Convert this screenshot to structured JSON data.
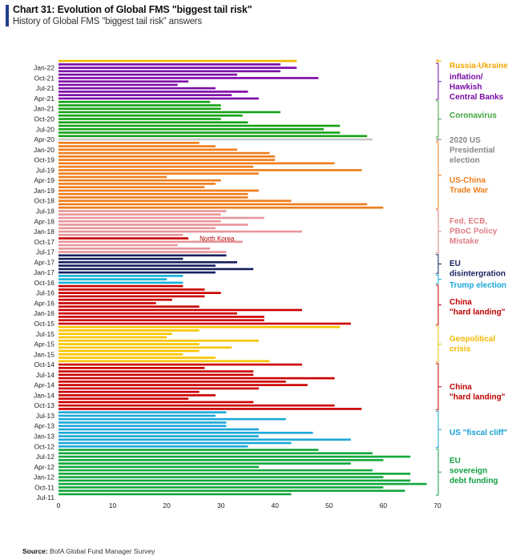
{
  "header": {
    "title": "Chart 31: Evolution of Global FMS \"biggest tail risk\"",
    "subtitle": "History of Global FMS \"biggest tail risk\" answers"
  },
  "source": {
    "label": "Source:",
    "text": "BofA Global Fund Manager Survey"
  },
  "chart_data": {
    "type": "bar",
    "orientation": "horizontal",
    "xlim": [
      0,
      70
    ],
    "xticks": [
      0,
      10,
      20,
      30,
      40,
      50,
      60,
      70
    ],
    "grid": false,
    "ytick_labels": [
      "Jan-22",
      "Oct-21",
      "Jul-21",
      "Apr-21",
      "Jan-21",
      "Oct-20",
      "Jul-20",
      "Apr-20",
      "Jan-20",
      "Oct-19",
      "Jul-19",
      "Apr-19",
      "Jan-19",
      "Oct-18",
      "Jul-18",
      "Apr-18",
      "Jan-18",
      "Oct-17",
      "Jul-17",
      "Apr-17",
      "Jan-17",
      "Oct-16",
      "Jul-16",
      "Apr-16",
      "Jan-16",
      "Oct-15",
      "Jul-15",
      "Apr-15",
      "Jan-15",
      "Oct-14",
      "Jul-14",
      "Apr-14",
      "Jan-14",
      "Oct-13",
      "Jul-13",
      "Apr-13",
      "Jan-13",
      "Oct-12",
      "Jul-12",
      "Apr-12",
      "Jan-12",
      "Oct-11",
      "Jul-11"
    ],
    "annotations": [
      {
        "text": "North Korea"
      }
    ],
    "groups": [
      {
        "name": "Russia-Ukraine",
        "color": "#f2b800",
        "values": [
          44
        ]
      },
      {
        "name": "inflation/ Hawkish Central Banks",
        "color": "#7e0aa8",
        "values": [
          41,
          44,
          41,
          33,
          48,
          24,
          22,
          29,
          35,
          32,
          37
        ]
      },
      {
        "name": "Coronavirus",
        "color": "#16a316",
        "values": [
          28,
          30,
          30,
          41,
          34,
          30,
          35,
          52,
          49,
          52,
          57
        ]
      },
      {
        "name": "2020 US Presidential election",
        "color": "#c8c8c8",
        "values": [
          58
        ]
      },
      {
        "name": "US-China Trade War",
        "color": "#f07d1a",
        "values": [
          26,
          29,
          33,
          39,
          40,
          40,
          51,
          36,
          56,
          37,
          20,
          30,
          29,
          27,
          37,
          35,
          35,
          43,
          57,
          60
        ]
      },
      {
        "name": "Fed, ECB, PBoC Policy Mistake",
        "color": "#e8969a",
        "values": [
          31,
          30,
          38,
          30,
          35,
          29,
          45,
          23
        ]
      },
      {
        "name": "North Korea",
        "color": "#cc0000",
        "values": [
          24
        ]
      },
      {
        "name": "Fed, ECB, PBoC Policy Mistake",
        "color": "#e8969a",
        "values": [
          34,
          22,
          28,
          31
        ]
      },
      {
        "name": "EU disintergration",
        "color": "#16215f",
        "values": [
          31,
          23,
          33,
          29,
          36,
          29
        ]
      },
      {
        "name": "Trump election",
        "color": "#17b3dc",
        "values": [
          23,
          20,
          23
        ]
      },
      {
        "name": "China \"hard landing\"",
        "color": "#cc0000",
        "values": [
          23,
          27,
          30,
          27,
          21,
          18,
          26,
          45,
          33,
          38,
          38,
          54
        ]
      },
      {
        "name": "Geopolitical crisis",
        "color": "#f8c500",
        "values": [
          52,
          26,
          21,
          20,
          37,
          26,
          32,
          26,
          23,
          29,
          39
        ]
      },
      {
        "name": "China \"hard landing\"",
        "color": "#cc0000",
        "values": [
          45,
          27,
          36,
          36,
          51,
          42,
          46,
          37,
          26,
          29,
          24,
          36,
          51,
          56
        ]
      },
      {
        "name": "US \"fiscal cliff\"",
        "color": "#1da8d8",
        "values": [
          31,
          29,
          42,
          31,
          31,
          37,
          47,
          37,
          54,
          43,
          35
        ]
      },
      {
        "name": "EU sovereign debt funding",
        "color": "#12a83c",
        "values": [
          48,
          58,
          65,
          60,
          54,
          37,
          58,
          65,
          60,
          65,
          68,
          60,
          64,
          43
        ]
      }
    ]
  },
  "legend": [
    {
      "label": "Russia-Ukraine",
      "color": "#f2a800"
    },
    {
      "label": "inflation/ Hawkish Central Banks",
      "color": "#7a0ca8"
    },
    {
      "label": "Coronavirus",
      "color": "#3fa43a"
    },
    {
      "label": "2020 US Presidential election",
      "color": "#888888"
    },
    {
      "label": "US-China Trade War",
      "color": "#f07d1a"
    },
    {
      "label": "Fed, ECB, PBoC Policy Mistake",
      "color": "#e07f85"
    },
    {
      "label": "EU disintergration",
      "color": "#16215f"
    },
    {
      "label": "Trump election",
      "color": "#17a7d6"
    },
    {
      "label": "China \"hard landing\"",
      "color": "#c00000"
    },
    {
      "label": "Geopolitical crisis",
      "color": "#f2b800"
    },
    {
      "label": "China \"hard landing\"",
      "color": "#c00000"
    },
    {
      "label": "US \"fiscal cliff\"",
      "color": "#1aa0d4"
    },
    {
      "label": "EU sovereign debt funding",
      "color": "#12a040"
    }
  ]
}
